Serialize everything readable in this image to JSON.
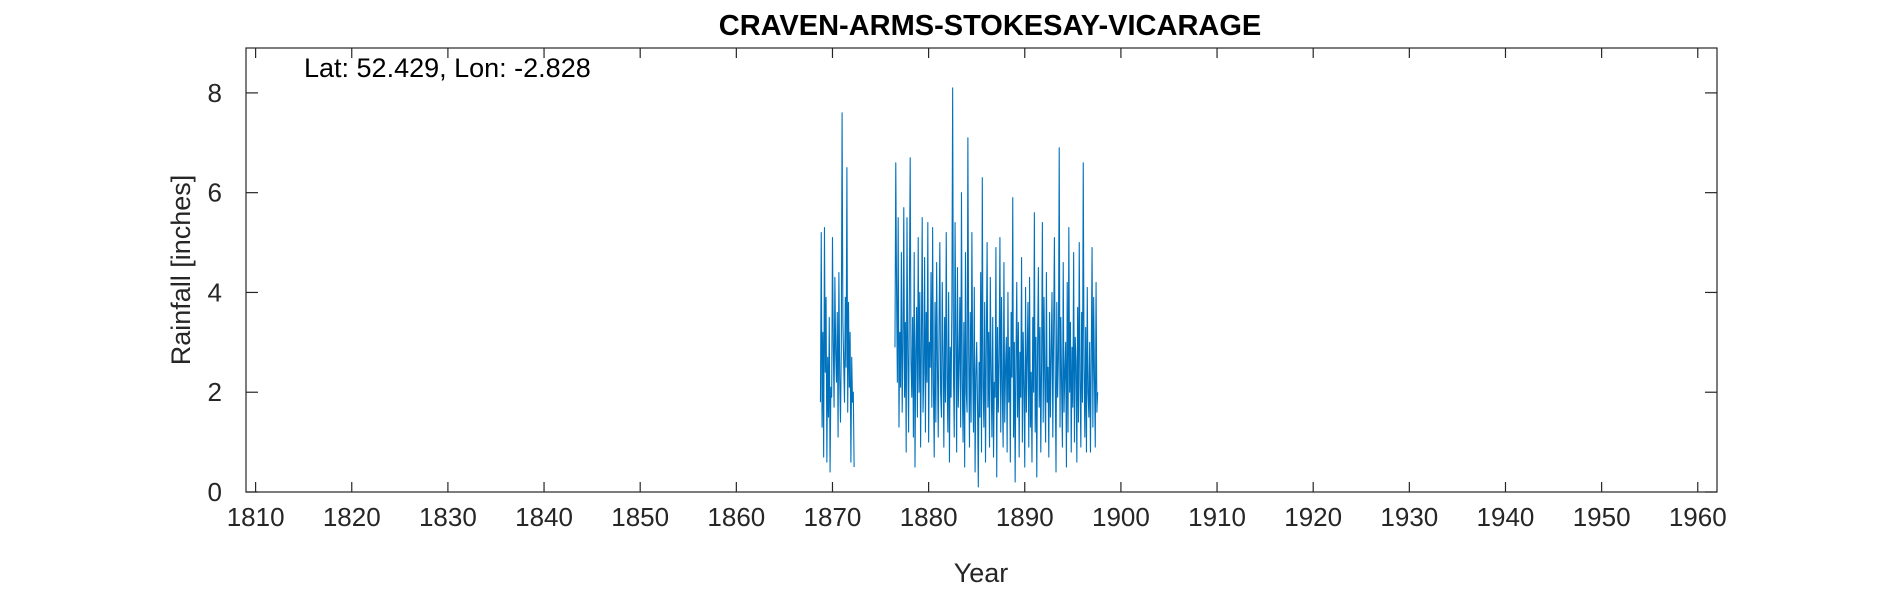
{
  "chart_data": {
    "type": "line",
    "title": "CRAVEN-ARMS-STOKESAY-VICARAGE",
    "annotation": "Lat: 52.429, Lon: -2.828",
    "xlabel": "Year",
    "ylabel": "Rainfall [inches]",
    "xlim": [
      1809,
      1962
    ],
    "ylim": [
      0,
      8.9
    ],
    "xticks": [
      1810,
      1820,
      1830,
      1840,
      1850,
      1860,
      1870,
      1880,
      1890,
      1900,
      1910,
      1920,
      1930,
      1940,
      1950,
      1960
    ],
    "yticks": [
      0,
      2,
      4,
      6,
      8
    ],
    "grid": false,
    "colors": {
      "series": "#0072BD",
      "axis": "#262626"
    },
    "series": [
      {
        "segments": [
          {
            "x_start": 1868.75,
            "step": 0.0833333,
            "values": [
              1.8,
              5.2,
              1.3,
              3.2,
              0.7,
              5.3,
              2.4,
              3.9,
              0.6,
              2.7,
              1.5,
              3.5,
              0.4,
              2.1,
              1.9,
              5.1,
              3.0,
              1.7,
              4.3,
              2.8,
              2.2,
              3.6,
              1.1,
              4.4,
              2.3,
              1.4,
              2.9,
              7.6,
              3.4,
              2.6,
              1.8,
              3.9,
              2.5,
              6.5,
              1.6,
              3.8,
              2.1,
              3.2,
              0.6,
              2.7,
              1.8,
              2.0,
              0.5
            ]
          },
          {
            "x_start": 1876.5,
            "step": 0.0833333,
            "values": [
              2.9,
              6.6,
              4.0,
              2.2,
              5.5,
              1.3,
              3.2,
              2.1,
              4.8,
              1.6,
              2.9,
              5.7,
              1.9,
              3.4,
              0.8,
              5.5,
              2.8,
              1.2,
              4.1,
              6.7,
              2.6,
              1.9,
              3.5,
              1.1,
              4.8,
              0.5,
              2.8,
              3.7,
              1.5,
              5.1,
              2.0,
              4.0,
              0.9,
              3.1,
              5.5,
              1.6,
              2.4,
              4.7,
              1.2,
              3.6,
              2.2,
              5.4,
              1.0,
              3.0,
              2.5,
              4.4,
              1.7,
              5.3,
              2.1,
              0.7,
              3.8,
              1.4,
              4.6,
              2.6,
              1.1,
              3.3,
              5.0,
              2.0,
              1.5,
              4.2,
              2.7,
              0.9,
              3.5,
              1.8,
              5.2,
              2.3,
              1.2,
              4.0,
              0.6,
              2.9,
              1.9,
              3.7,
              8.1,
              2.4,
              1.1,
              5.4,
              3.1,
              0.8,
              4.5,
              1.7,
              2.6,
              3.9,
              1.3,
              6.0,
              2.2,
              1.0,
              3.4,
              0.5,
              4.8,
              2.0,
              1.6,
              7.1,
              2.8,
              0.9,
              3.6,
              1.4,
              5.2,
              2.5,
              1.2,
              4.1,
              0.4,
              2.3,
              3.0,
              1.8,
              0.1,
              2.6,
              1.5,
              4.4,
              0.8,
              6.3,
              2.1,
              1.3,
              3.8,
              0.6,
              2.9,
              5.0,
              1.7,
              3.2,
              0.9,
              4.3,
              2.4,
              1.1,
              3.5,
              0.7,
              2.2,
              1.9,
              4.9,
              0.3,
              3.3,
              1.6,
              2.7,
              5.1,
              1.2,
              3.9,
              2.0,
              0.9,
              4.6,
              1.4,
              2.5,
              3.1,
              0.8,
              4.0,
              1.8,
              2.9,
              0.6,
              3.6,
              2.3,
              5.9,
              1.1,
              3.0,
              0.2,
              2.6,
              4.2,
              1.5,
              3.4,
              0.7,
              2.8,
              1.9,
              4.7,
              1.0,
              3.2,
              2.1,
              0.5,
              4.1,
              1.6,
              2.7,
              3.8,
              0.9,
              4.3,
              1.3,
              2.4,
              0.6,
              3.5,
              2.0,
              5.6,
              1.2,
              3.1,
              0.3,
              2.9,
              4.5,
              1.7,
              3.3,
              0.8,
              2.6,
              5.4,
              1.4,
              3.9,
              2.2,
              1.0,
              4.4,
              1.8,
              2.5,
              0.7,
              3.6,
              1.5,
              2.8,
              4.0,
              1.1,
              3.2,
              5.1,
              2.3,
              0.4,
              3.8,
              1.9,
              2.7,
              6.9,
              1.3,
              3.5,
              2.1,
              0.9,
              4.6,
              1.6,
              2.4,
              3.0,
              0.5,
              4.2,
              1.2,
              5.3,
              2.0,
              3.4,
              0.8,
              2.9,
              1.7,
              4.8,
              1.0,
              3.1,
              2.6,
              0.6,
              3.7,
              1.4,
              5.0,
              2.2,
              0.9,
              3.6,
              1.8,
              6.6,
              2.5,
              1.1,
              3.3,
              0.8,
              4.1,
              2.0,
              1.5,
              3.0,
              0.8,
              2.7,
              4.9,
              1.3,
              3.9,
              2.3,
              0.9,
              4.2,
              1.6,
              2.0
            ]
          }
        ]
      }
    ]
  }
}
